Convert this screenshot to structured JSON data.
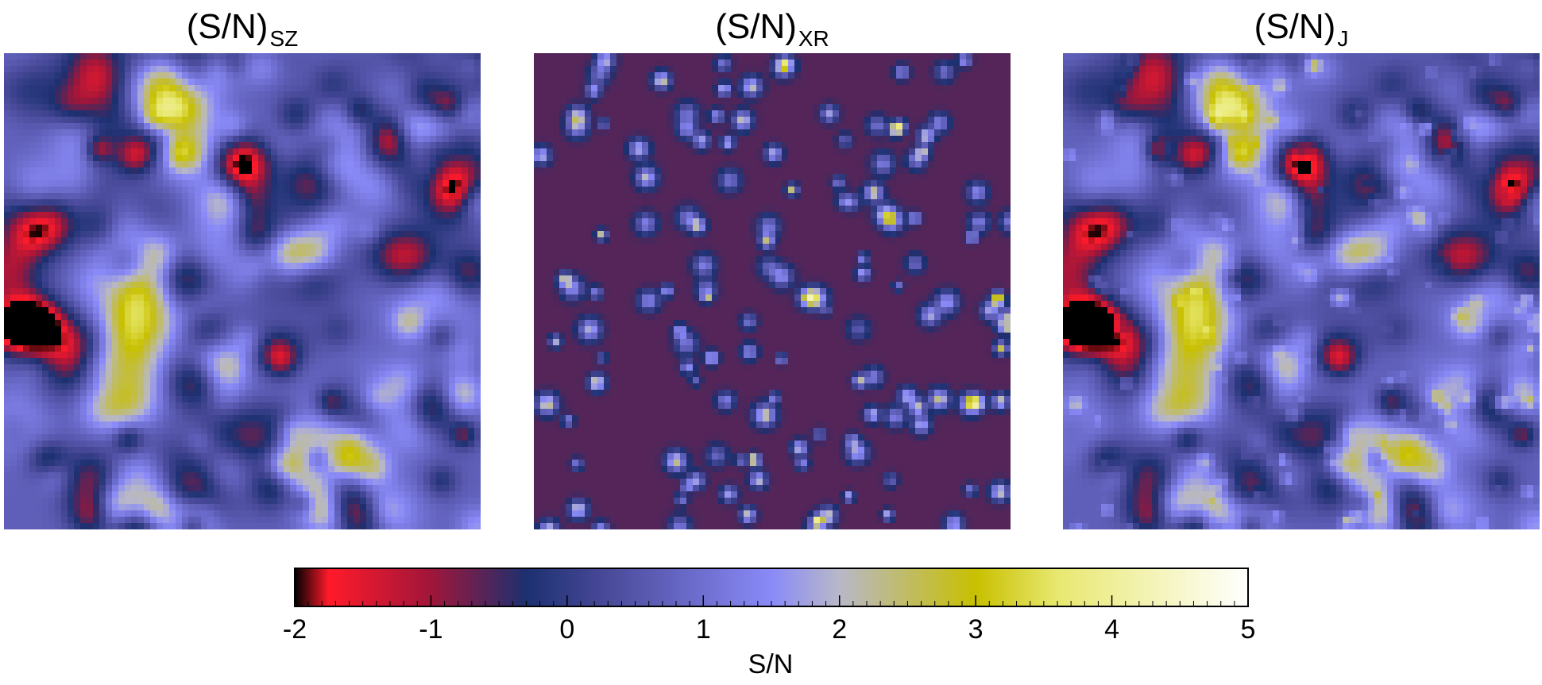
{
  "panels": [
    {
      "title_main": "(S/N)",
      "title_sub": "SZ"
    },
    {
      "title_main": "(S/N)",
      "title_sub": "XR"
    },
    {
      "title_main": "(S/N)",
      "title_sub": "J"
    }
  ],
  "chart_data": [
    {
      "type": "heatmap",
      "title": "(S/N)SZ",
      "colorscale_range": [
        -2,
        5
      ]
    },
    {
      "type": "heatmap",
      "title": "(S/N)XR",
      "colorscale_range": [
        -2,
        5
      ]
    },
    {
      "type": "heatmap",
      "title": "(S/N)J",
      "colorscale_range": [
        -2,
        5
      ]
    },
    {
      "type": "colorbar",
      "xlabel": "S/N",
      "xlim": [
        -2,
        5
      ],
      "ticks": [
        -2,
        -1,
        0,
        1,
        2,
        3,
        4,
        5
      ],
      "tick_labels": [
        "-2",
        "-1",
        "0",
        "1",
        "2",
        "3",
        "4",
        "5"
      ],
      "colormap": [
        {
          "value": -2.0,
          "color": "#000000"
        },
        {
          "value": -1.75,
          "color": "#ff1a2a"
        },
        {
          "value": -1.0,
          "color": "#a0163a"
        },
        {
          "value": -0.3,
          "color": "#1c3070"
        },
        {
          "value": 0.3,
          "color": "#4a4a9a"
        },
        {
          "value": 1.5,
          "color": "#8a8af8"
        },
        {
          "value": 2.0,
          "color": "#b8b8c8"
        },
        {
          "value": 3.0,
          "color": "#c8c000"
        },
        {
          "value": 3.6,
          "color": "#e8e870"
        },
        {
          "value": 5.0,
          "color": "#ffffff"
        }
      ]
    }
  ]
}
